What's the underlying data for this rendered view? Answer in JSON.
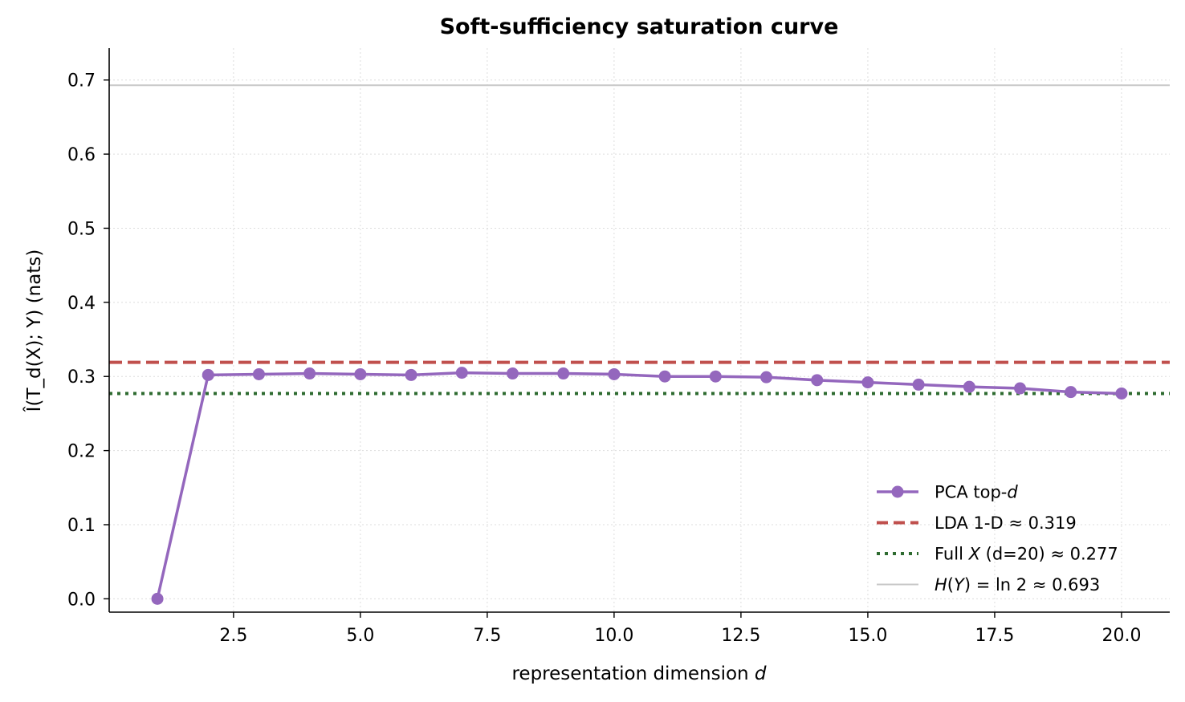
{
  "chart_data": {
    "type": "line",
    "title": "Soft-sufficiency saturation curve",
    "xlabel_main": "representation dimension ",
    "xlabel_var": "d",
    "ylabel": "Î(T_d(X); Y)  (nats)",
    "xlim": [
      0.05,
      20.95
    ],
    "ylim": [
      -0.018,
      0.743
    ],
    "xticks": [
      2.5,
      5.0,
      7.5,
      10.0,
      12.5,
      15.0,
      17.5,
      20.0
    ],
    "xtick_labels": [
      "2.5",
      "5.0",
      "7.5",
      "10.0",
      "12.5",
      "15.0",
      "17.5",
      "20.0"
    ],
    "yticks": [
      0.0,
      0.1,
      0.2,
      0.3,
      0.4,
      0.5,
      0.6,
      0.7
    ],
    "ytick_labels": [
      "0.0",
      "0.1",
      "0.2",
      "0.3",
      "0.4",
      "0.5",
      "0.6",
      "0.7"
    ],
    "grid": true,
    "legend_position": "lower-right",
    "series": [
      {
        "name": "PCA top-d",
        "color": "#9467bd",
        "style": "solid-markers",
        "x": [
          1,
          2,
          3,
          4,
          5,
          6,
          7,
          8,
          9,
          10,
          11,
          12,
          13,
          14,
          15,
          16,
          17,
          18,
          19,
          20
        ],
        "values": [
          0.0,
          0.302,
          0.303,
          0.304,
          0.303,
          0.302,
          0.305,
          0.304,
          0.304,
          0.303,
          0.3,
          0.3,
          0.299,
          0.295,
          0.292,
          0.289,
          0.286,
          0.284,
          0.279,
          0.277
        ]
      }
    ],
    "reference_lines": [
      {
        "name": "LDA 1-D ≈ 0.319",
        "value": 0.319,
        "color": "#c0504d",
        "style": "dashed"
      },
      {
        "name": "Full X (d=20) ≈ 0.277",
        "value": 0.277,
        "color": "#2e6b30",
        "style": "dotted"
      },
      {
        "name": "H(Y) = ln 2 ≈ 0.693",
        "value": 0.693,
        "color": "#c8c8c8",
        "style": "solid"
      }
    ],
    "legend": [
      {
        "parts": [
          [
            "PCA top-",
            false
          ],
          [
            "d",
            true
          ]
        ]
      },
      {
        "parts": [
          [
            "LDA 1-D ≈ 0.319",
            false
          ]
        ]
      },
      {
        "parts": [
          [
            "Full ",
            false
          ],
          [
            "X",
            true
          ],
          [
            " (d=20) ≈ 0.277",
            false
          ]
        ]
      },
      {
        "parts": [
          [
            "H",
            true
          ],
          [
            "(",
            false
          ],
          [
            "Y",
            true
          ],
          [
            ") = ln 2 ≈ 0.693",
            false
          ]
        ]
      }
    ]
  }
}
